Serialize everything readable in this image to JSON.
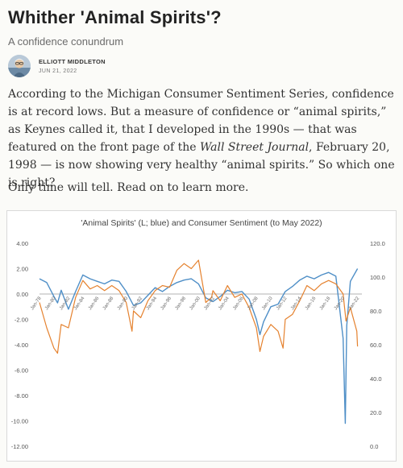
{
  "article": {
    "title": "Whither 'Animal Spirits'?",
    "subtitle": "A confidence conundrum",
    "author": "ELLIOTT MIDDLETON",
    "date": "JUN 21, 2022",
    "p1_a": "According to the Michigan Consumer Sentiment Series, confidence is at record lows. But a measure of confidence or “animal spirits,” as Keynes called it, that I developed in the 1990s — that was featured on the front page of the ",
    "p1_b": "Wall Street Journal",
    "p1_c": ", February 20, 1998 — is now showing very healthy “animal spirits.” So which one is right?",
    "p2": "Only time will tell. Read on to learn more."
  },
  "chart_data": {
    "type": "line",
    "title": "'Animal Spirits' (L; blue) and Consumer Sentiment (to May 2022)",
    "x_tick_labels": [
      "Jan-78",
      "Jan-80",
      "Jan-82",
      "Jan-84",
      "Jan-86",
      "Jan-88",
      "Jan-90",
      "Jan-92",
      "Jan-94",
      "Jan-96",
      "Jan-98",
      "Jan-00",
      "Jan-02",
      "Jan-04",
      "Jan-06",
      "Jan-08",
      "Jan-10",
      "Jan-12",
      "Jan-14",
      "Jan-16",
      "Jan-18",
      "Jan-20",
      "Jan-22"
    ],
    "ylim_left": [
      -12,
      4
    ],
    "left_ticks": [
      "4.00",
      "2.00",
      "0.00",
      "-2.00",
      "-4.00",
      "-6.00",
      "-8.00",
      "-10.00",
      "-12.00"
    ],
    "ylim_right": [
      0,
      120
    ],
    "right_ticks": [
      "120.0",
      "100.0",
      "80.0",
      "60.0",
      "40.0",
      "20.0",
      "0.0"
    ],
    "series": [
      {
        "axis": "left",
        "color": "#4f8fc7",
        "x": [
          1978,
          1979,
          1980,
          1980.5,
          1981,
          1982,
          1983,
          1984,
          1985,
          1986,
          1987,
          1988,
          1989,
          1990,
          1991,
          1992,
          1993,
          1994,
          1995,
          1996,
          1997,
          1998,
          1999,
          2000,
          2001,
          2002,
          2003,
          2004,
          2005,
          2006,
          2007,
          2008,
          2008.5,
          2009,
          2010,
          2011,
          2012,
          2013,
          2014,
          2015,
          2016,
          2017,
          2018,
          2019,
          2020,
          2020.3,
          2020.5,
          2021,
          2022
        ],
        "y": [
          1.2,
          0.9,
          -0.2,
          -0.7,
          0.3,
          -1.2,
          0.2,
          1.5,
          1.2,
          1.0,
          0.8,
          1.1,
          1.0,
          0.2,
          -0.9,
          -0.7,
          -0.1,
          0.5,
          0.2,
          0.6,
          0.9,
          1.1,
          1.2,
          0.8,
          -0.3,
          -0.6,
          -0.2,
          0.3,
          0.1,
          0.2,
          -0.4,
          -2.0,
          -3.2,
          -2.2,
          -1.0,
          -0.8,
          0.2,
          0.6,
          1.1,
          1.4,
          1.2,
          1.5,
          1.7,
          1.4,
          -3.5,
          -10.2,
          -2.5,
          1.0,
          2.0
        ]
      },
      {
        "axis": "right",
        "color": "#e5822f",
        "x": [
          1978,
          1979,
          1980,
          1980.5,
          1981,
          1982,
          1983,
          1984,
          1985,
          1986,
          1987,
          1988,
          1989,
          1990,
          1990.8,
          1991,
          1992,
          1993,
          1994,
          1995,
          1996,
          1997,
          1998,
          1999,
          2000,
          2001,
          2001.8,
          2002,
          2003,
          2004,
          2005,
          2006,
          2007,
          2008,
          2008.5,
          2009,
          2010,
          2011,
          2011.7,
          2012,
          2013,
          2014,
          2015,
          2016,
          2017,
          2018,
          2019,
          2020,
          2020.4,
          2021,
          2021.9,
          2022
        ],
        "y": [
          85,
          70,
          58,
          55,
          72,
          70,
          88,
          98,
          93,
          95,
          92,
          95,
          92,
          85,
          68,
          80,
          76,
          86,
          92,
          95,
          94,
          104,
          108,
          105,
          110,
          85,
          88,
          92,
          86,
          95,
          88,
          90,
          82,
          70,
          56,
          65,
          72,
          68,
          58,
          75,
          78,
          86,
          95,
          92,
          96,
          98,
          96,
          90,
          74,
          82,
          68,
          59
        ]
      }
    ]
  }
}
